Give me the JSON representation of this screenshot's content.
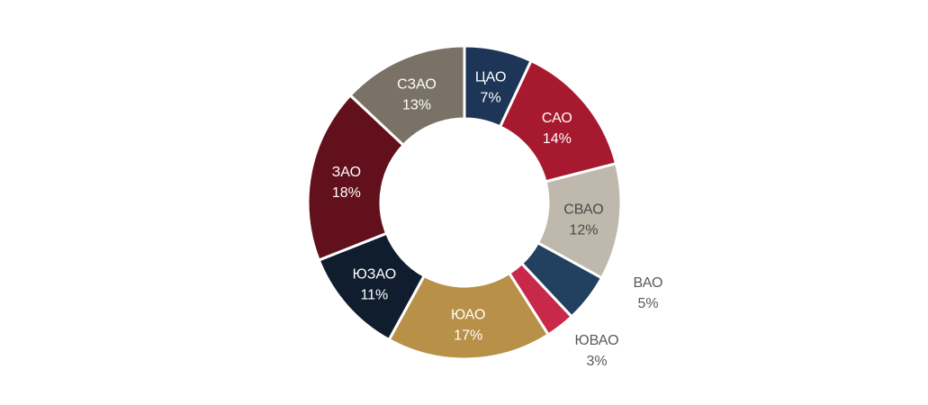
{
  "chart_data": {
    "type": "pie",
    "variant": "donut",
    "title": "",
    "legend": "none",
    "slices": [
      {
        "label": "ЦАО",
        "value": 7,
        "value_label": "7%",
        "color": "#1d3557",
        "text_color": "#ffffff",
        "label_position": "inside"
      },
      {
        "label": "САО",
        "value": 14,
        "value_label": "14%",
        "color": "#a6192e",
        "text_color": "#ffffff",
        "label_position": "inside"
      },
      {
        "label": "СВАО",
        "value": 12,
        "value_label": "12%",
        "color": "#bfb8ac",
        "text_color": "#4a4a4a",
        "label_position": "inside"
      },
      {
        "label": "ВАО",
        "value": 5,
        "value_label": "5%",
        "color": "#22405f",
        "text_color": "#595959",
        "label_position": "outside"
      },
      {
        "label": "ЮВАО",
        "value": 3,
        "value_label": "3%",
        "color": "#c8294a",
        "text_color": "#595959",
        "label_position": "outside"
      },
      {
        "label": "ЮАО",
        "value": 17,
        "value_label": "17%",
        "color": "#b99047",
        "text_color": "#ffffff",
        "label_position": "inside"
      },
      {
        "label": "ЮЗАО",
        "value": 11,
        "value_label": "11%",
        "color": "#0f1d2e",
        "text_color": "#ffffff",
        "label_position": "inside"
      },
      {
        "label": "ЗАО",
        "value": 18,
        "value_label": "18%",
        "color": "#62101c",
        "text_color": "#ffffff",
        "label_position": "inside"
      },
      {
        "label": "СЗАО",
        "value": 13,
        "value_label": "13%",
        "color": "#7a7266",
        "text_color": "#ffffff",
        "label_position": "inside"
      }
    ]
  }
}
